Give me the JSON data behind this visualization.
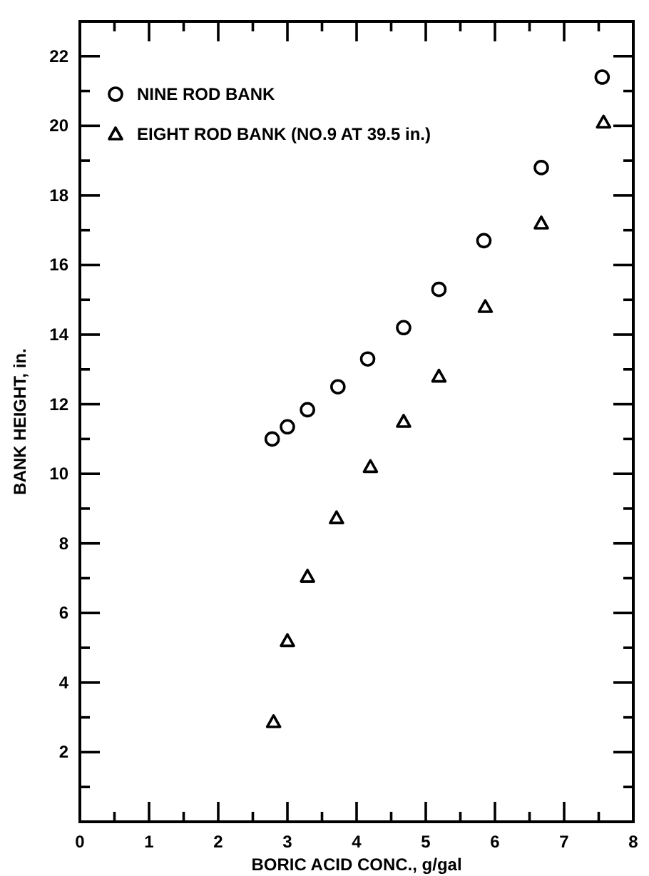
{
  "chart_data": {
    "type": "scatter",
    "xlabel": "BORIC ACID CONC., g/gal",
    "ylabel": "BANK HEIGHT, in.",
    "xlim": [
      0,
      8
    ],
    "ylim": [
      0,
      23
    ],
    "xticks": [
      0,
      {
        "value": 0.5,
        "label": null
      },
      1,
      {
        "value": 1.5,
        "label": null
      },
      2,
      {
        "value": 2.5,
        "label": null
      },
      3,
      {
        "value": 3.5,
        "label": null
      },
      4,
      {
        "value": 4.5,
        "label": null
      },
      5,
      {
        "value": 5.5,
        "label": null
      },
      6,
      {
        "value": 6.5,
        "label": null
      },
      7,
      {
        "value": 7.5,
        "label": null
      },
      8
    ],
    "yticks": [
      {
        "value": 1,
        "label": null
      },
      2,
      {
        "value": 3,
        "label": null
      },
      4,
      {
        "value": 5,
        "label": null
      },
      6,
      {
        "value": 7,
        "label": null
      },
      8,
      {
        "value": 9,
        "label": null
      },
      10,
      {
        "value": 11,
        "label": null
      },
      12,
      {
        "value": 13,
        "label": null
      },
      14,
      {
        "value": 15,
        "label": null
      },
      16,
      {
        "value": 17,
        "label": null
      },
      18,
      {
        "value": 19,
        "label": null
      },
      20,
      {
        "value": 21,
        "label": null
      },
      22
    ],
    "legend": "top left",
    "grid": false,
    "series": [
      {
        "name": "NINE ROD BANK",
        "color": "#000000",
        "marker": "circle",
        "x": [
          2.78,
          3.0,
          3.29,
          3.73,
          4.16,
          4.68,
          5.19,
          5.84,
          6.67,
          7.55
        ],
        "values": [
          11.0,
          11.35,
          11.84,
          12.5,
          13.3,
          14.2,
          15.3,
          16.7,
          18.8,
          21.4
        ]
      },
      {
        "name": "EIGHT ROD BANK (NO.9 AT 39.5 in.)",
        "color": "#000000",
        "marker": "triangle",
        "x": [
          2.8,
          3.0,
          3.29,
          3.71,
          4.2,
          4.68,
          5.19,
          5.86,
          6.67,
          7.57
        ],
        "values": [
          2.87,
          5.2,
          7.05,
          8.73,
          10.2,
          11.5,
          12.8,
          14.8,
          17.2,
          20.1
        ]
      }
    ]
  }
}
